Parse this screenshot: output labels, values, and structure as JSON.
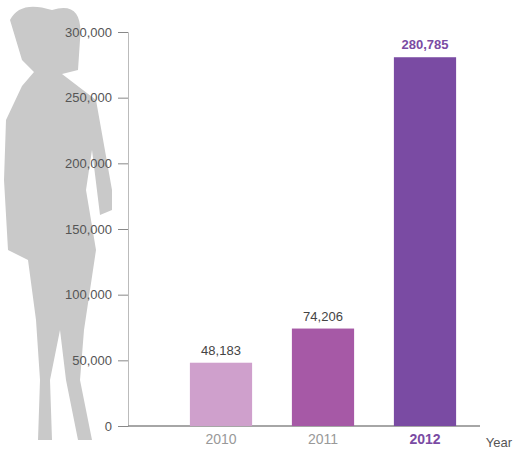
{
  "chart_data": {
    "type": "bar",
    "categories": [
      "2010",
      "2011",
      "2012"
    ],
    "values": [
      48183,
      74206,
      280785
    ],
    "value_labels": [
      "48,183",
      "74,206",
      "280,785"
    ],
    "colors": [
      "#cfa0cc",
      "#a659a6",
      "#7a4ba3"
    ],
    "x_label": "Year",
    "ylim": [
      0,
      300000
    ],
    "yticks": [
      0,
      {
        "value": 50000,
        "label": "50,000"
      },
      {
        "value": 100000,
        "label": "100,000"
      },
      {
        "value": 150000,
        "label": "150,000"
      },
      {
        "value": 200000,
        "label": "200,000"
      },
      {
        "value": 250000,
        "label": "250,000"
      },
      {
        "value": 300000,
        "label": "300,000"
      }
    ],
    "grid": false,
    "data_labels": true
  }
}
